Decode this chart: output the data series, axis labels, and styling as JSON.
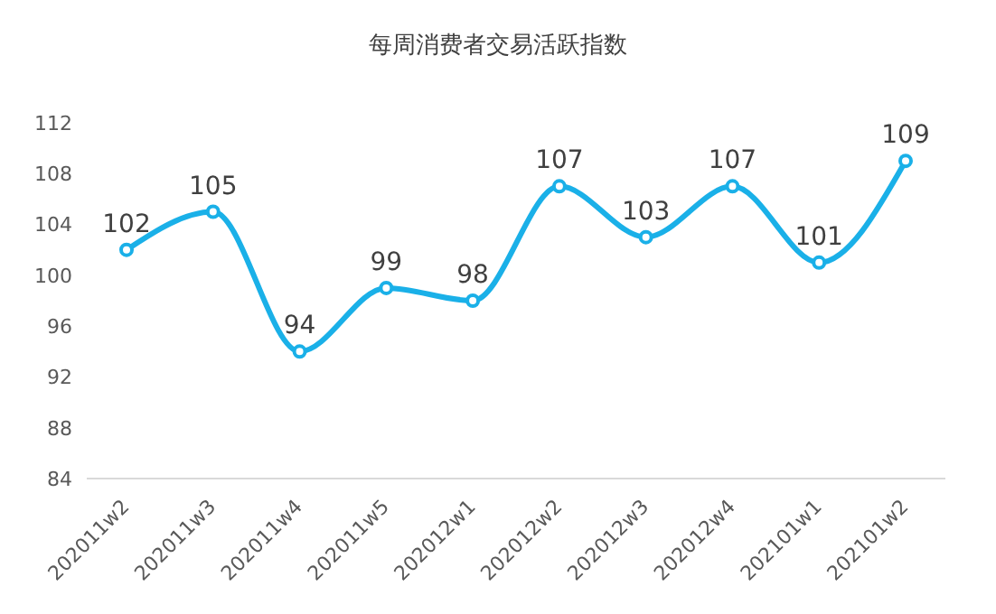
{
  "chart_data": {
    "type": "line",
    "title": "每周消费者交易活跃指数",
    "categories": [
      "202011w2",
      "202011w3",
      "202011w4",
      "202011w5",
      "202012w1",
      "202012w2",
      "202012w3",
      "202012w4",
      "202101w1",
      "202101w2"
    ],
    "series": [
      {
        "color": "#1ab0e8",
        "values": [
          102,
          105,
          94,
          99,
          98,
          107,
          103,
          107,
          101,
          109
        ]
      }
    ],
    "ylim": [
      84,
      112
    ],
    "yticks": [
      84,
      88,
      92,
      96,
      100,
      104,
      108,
      112
    ],
    "grid": false,
    "legend": false,
    "marker": "circle",
    "line_style": "solid",
    "data_labels": true
  }
}
